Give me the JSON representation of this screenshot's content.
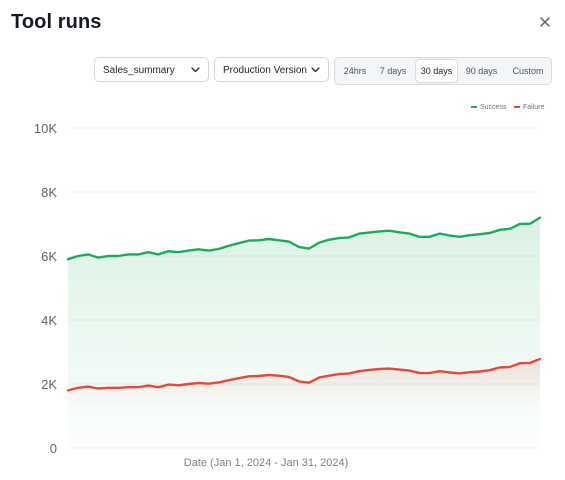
{
  "header": {
    "title": "Tool runs"
  },
  "filters": {
    "prompt": "Sales_summary",
    "version": "Production Version"
  },
  "ranges": [
    {
      "label": "24hrs",
      "active": false
    },
    {
      "label": "7 days",
      "active": false
    },
    {
      "label": "30 days",
      "active": true
    },
    {
      "label": "90 days",
      "active": false
    },
    {
      "label": "Custom",
      "active": false
    }
  ],
  "colors": {
    "success": "#1faa5a",
    "failure": "#e24a3d"
  },
  "chart_data": {
    "type": "area",
    "xlabel": "Date (Jan 1, 2024 -  Jan 31, 2024)",
    "ylabel": "",
    "ylim": [
      0,
      10000
    ],
    "yticks": [
      "0",
      "2K",
      "4K",
      "6K",
      "8K",
      "10K"
    ],
    "legend_position": "top-right",
    "series": [
      {
        "name": "Success",
        "values": [
          5900,
          6000,
          6050,
          5950,
          6000,
          6000,
          6050,
          6050,
          6120,
          6050,
          6150,
          6120,
          6170,
          6210,
          6170,
          6220,
          6320,
          6400,
          6480,
          6490,
          6530,
          6490,
          6450,
          6280,
          6230,
          6420,
          6510,
          6560,
          6580,
          6700,
          6730,
          6770,
          6790,
          6740,
          6700,
          6600,
          6600,
          6700,
          6640,
          6600,
          6650,
          6680,
          6720,
          6820,
          6850,
          7000,
          7010,
          7200
        ]
      },
      {
        "name": "Failure",
        "values": [
          1800,
          1880,
          1920,
          1860,
          1880,
          1880,
          1900,
          1900,
          1950,
          1900,
          1980,
          1960,
          2000,
          2030,
          2010,
          2050,
          2120,
          2180,
          2240,
          2250,
          2280,
          2260,
          2220,
          2080,
          2040,
          2200,
          2260,
          2310,
          2330,
          2400,
          2440,
          2470,
          2480,
          2450,
          2420,
          2340,
          2340,
          2400,
          2360,
          2330,
          2370,
          2390,
          2430,
          2520,
          2530,
          2650,
          2660,
          2780
        ]
      }
    ]
  }
}
